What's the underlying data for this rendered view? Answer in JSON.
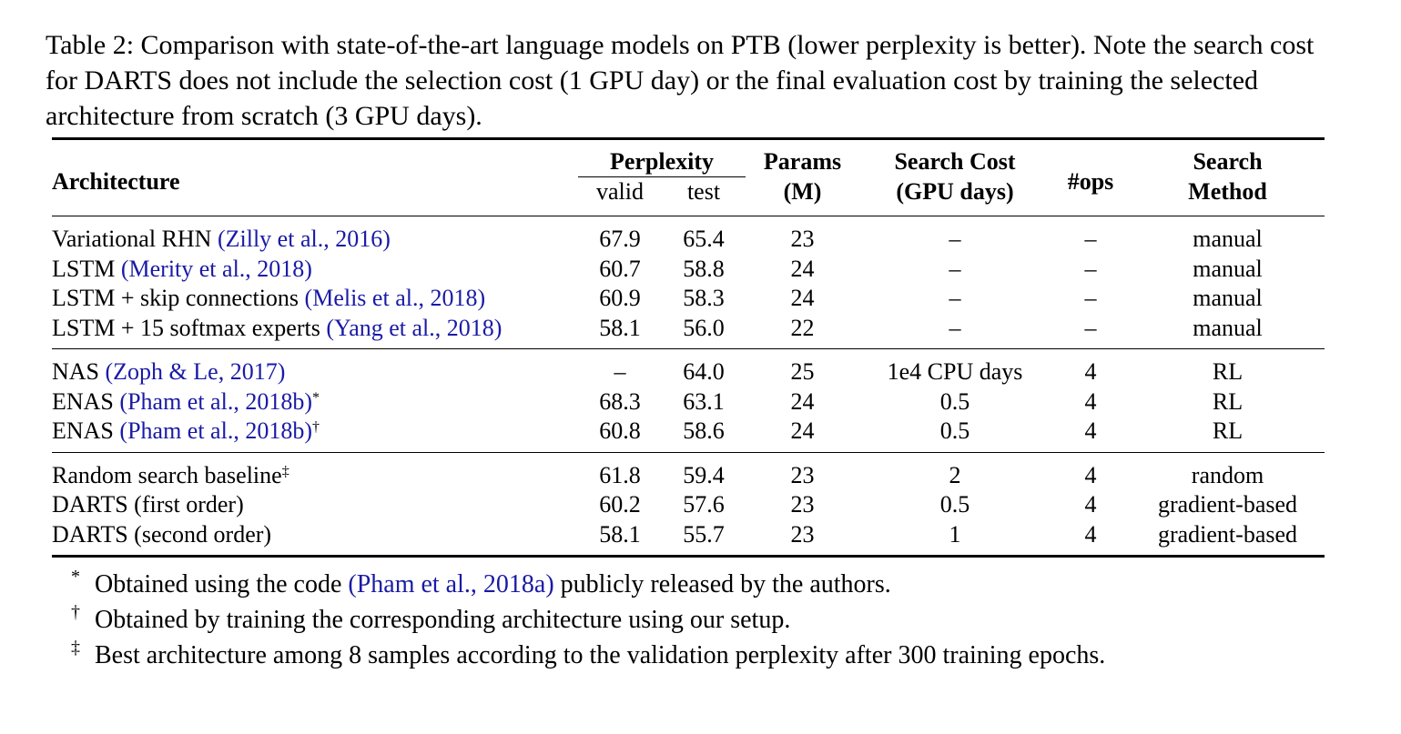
{
  "caption": "Table 2: Comparison with state-of-the-art language models on PTB (lower perplexity is better). Note the search cost for DARTS does not include the selection cost (1 GPU day) or the final evaluation cost by training the selected architecture from scratch (3 GPU days).",
  "header": {
    "architecture": "Architecture",
    "perplexity": "Perplexity",
    "valid": "valid",
    "test": "test",
    "params_line1": "Params",
    "params_line2": "(M)",
    "cost_line1": "Search Cost",
    "cost_line2": "(GPU days)",
    "ops": "#ops",
    "method_line1": "Search",
    "method_line2": "Method"
  },
  "groups": [
    [
      {
        "name": "Variational RHN",
        "cite": "(Zilly et al., 2016)",
        "mark": "",
        "valid": "67.9",
        "test": "65.4",
        "params": "23",
        "cost": "–",
        "ops": "–",
        "method": "manual"
      },
      {
        "name": "LSTM",
        "cite": "(Merity et al., 2018)",
        "mark": "",
        "valid": "60.7",
        "test": "58.8",
        "params": "24",
        "cost": "–",
        "ops": "–",
        "method": "manual"
      },
      {
        "name": "LSTM + skip connections",
        "cite": "(Melis et al., 2018)",
        "mark": "",
        "valid": "60.9",
        "test": "58.3",
        "params": "24",
        "cost": "–",
        "ops": "–",
        "method": "manual"
      },
      {
        "name": "LSTM + 15 softmax experts",
        "cite": "(Yang et al., 2018)",
        "mark": "",
        "valid": "58.1",
        "test": "56.0",
        "params": "22",
        "cost": "–",
        "ops": "–",
        "method": "manual"
      }
    ],
    [
      {
        "name": "NAS",
        "cite": "(Zoph & Le, 2017)",
        "mark": "",
        "valid": "–",
        "test": "64.0",
        "params": "25",
        "cost": "1e4 CPU days",
        "ops": "4",
        "method": "RL"
      },
      {
        "name": "ENAS",
        "cite": "(Pham et al., 2018b)",
        "mark": "*",
        "valid": "68.3",
        "test": "63.1",
        "params": "24",
        "cost": "0.5",
        "ops": "4",
        "method": "RL"
      },
      {
        "name": "ENAS",
        "cite": "(Pham et al., 2018b)",
        "mark": "†",
        "valid": "60.8",
        "test": "58.6",
        "params": "24",
        "cost": "0.5",
        "ops": "4",
        "method": "RL"
      }
    ],
    [
      {
        "name": "Random search baseline",
        "cite": "",
        "mark": "‡",
        "valid": "61.8",
        "test": "59.4",
        "params": "23",
        "cost": "2",
        "ops": "4",
        "method": "random"
      },
      {
        "name": "DARTS (first order)",
        "cite": "",
        "mark": "",
        "valid": "60.2",
        "test": "57.6",
        "params": "23",
        "cost": "0.5",
        "ops": "4",
        "method": "gradient-based"
      },
      {
        "name": "DARTS (second order)",
        "cite": "",
        "mark": "",
        "valid": "58.1",
        "test": "55.7",
        "params": "23",
        "cost": "1",
        "ops": "4",
        "method": "gradient-based"
      }
    ]
  ],
  "footnotes": [
    {
      "mark": "*",
      "before": "Obtained using the code ",
      "cite": "(Pham et al., 2018a)",
      "after": " publicly released by the authors."
    },
    {
      "mark": "†",
      "before": "Obtained by training the corresponding architecture using our setup.",
      "cite": "",
      "after": ""
    },
    {
      "mark": "‡",
      "before": "Best architecture among 8 samples according to the validation perplexity after 300 training epochs.",
      "cite": "",
      "after": ""
    }
  ],
  "colors": {
    "citation": "#1a1aa6"
  }
}
